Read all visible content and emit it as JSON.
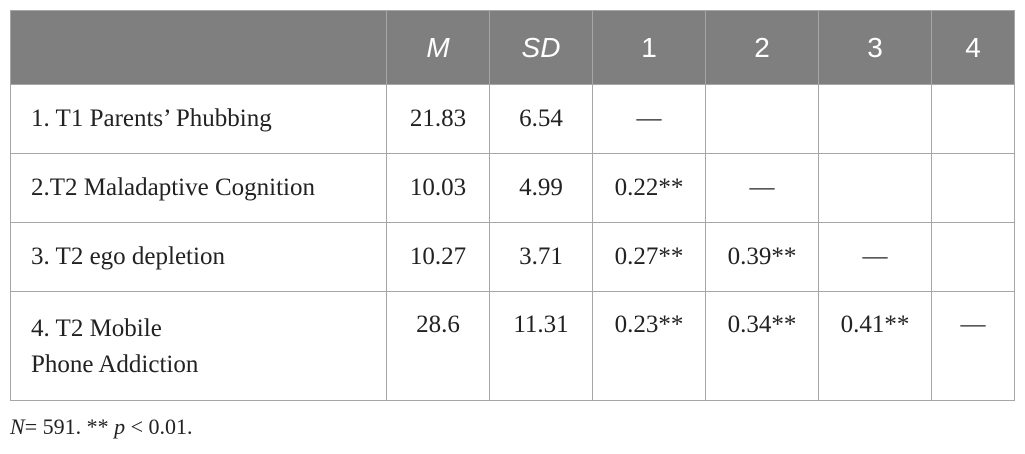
{
  "table": {
    "headers": [
      "",
      "M",
      "SD",
      "1",
      "2",
      "3",
      "4"
    ],
    "rows": [
      {
        "label": "1. T1 Parents’ Phubbing",
        "m": "21.83",
        "sd": "6.54",
        "c1": "—",
        "c2": "",
        "c3": "",
        "c4": ""
      },
      {
        "label": "2.T2 Maladaptive Cognition",
        "m": "10.03",
        "sd": "4.99",
        "c1": "0.22**",
        "c2": "—",
        "c3": "",
        "c4": ""
      },
      {
        "label": "3. T2 ego depletion",
        "m": "10.27",
        "sd": "3.71",
        "c1": "0.27**",
        "c2": "0.39**",
        "c3": "—",
        "c4": ""
      },
      {
        "label_line1": "4. T2 Mobile",
        "label_line2": "Phone Addiction",
        "m": "28.6",
        "sd": "11.31",
        "c1": "0.23**",
        "c2": "0.34**",
        "c3": "0.41**",
        "c4": "—"
      }
    ]
  },
  "note": {
    "n_symbol": "N",
    "n_text": "= 591. ** ",
    "p_symbol": "p",
    "p_text": " < 0.01."
  },
  "colors": {
    "header_bg": "#7f7f7f",
    "border": "#a6a6a6"
  }
}
